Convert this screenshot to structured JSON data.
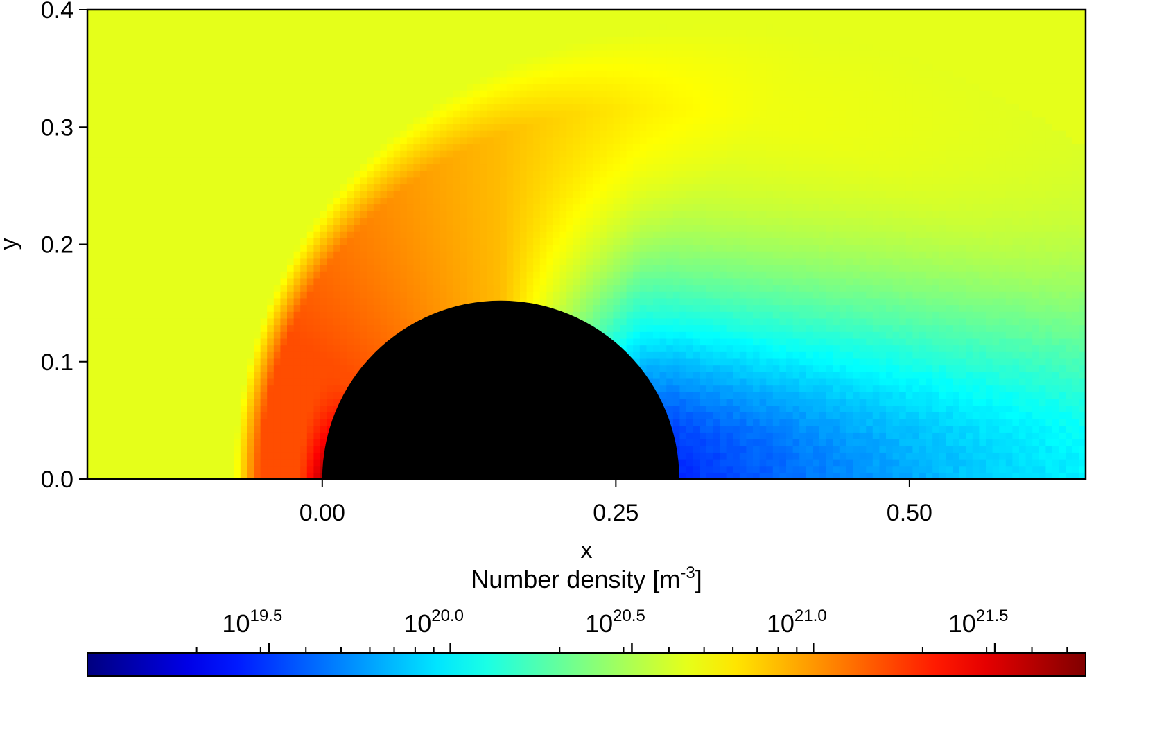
{
  "chart_data": {
    "type": "heatmap",
    "title": "",
    "xlabel": "x",
    "ylabel": "y",
    "xlim": [
      -0.2,
      0.65
    ],
    "ylim": [
      0.0,
      0.4
    ],
    "x_ticks": [
      {
        "value": 0.0,
        "label": "0.00"
      },
      {
        "value": 0.25,
        "label": "0.25"
      },
      {
        "value": 0.5,
        "label": "0.50"
      }
    ],
    "y_ticks": [
      {
        "value": 0.0,
        "label": "0.0"
      },
      {
        "value": 0.1,
        "label": "0.1"
      },
      {
        "value": 0.2,
        "label": "0.2"
      },
      {
        "value": 0.3,
        "label": "0.3"
      },
      {
        "value": 0.4,
        "label": "0.4"
      }
    ],
    "obstacle": {
      "shape": "semicircle",
      "center_x": 0.152,
      "center_y": 0.0,
      "radius": 0.152,
      "color": "#000000"
    },
    "field": {
      "quantity": "Number density",
      "freestream_log10": 20.65,
      "shock_standoff_x": -0.075,
      "shock_peak_log10": 21.2,
      "stagnation_peak_log10": 21.55,
      "wake_min_log10": 19.5
    },
    "colorbar": {
      "label_text": "Number density [m",
      "label_sup": "-3",
      "label_close": "]",
      "log10_range": [
        19.0,
        21.75
      ],
      "ticks": [
        {
          "exponent": 19.5,
          "base": "10",
          "sup": "19.5"
        },
        {
          "exponent": 20.0,
          "base": "10",
          "sup": "20.0"
        },
        {
          "exponent": 20.5,
          "base": "10",
          "sup": "20.5"
        },
        {
          "exponent": 21.0,
          "base": "10",
          "sup": "21.0"
        },
        {
          "exponent": 21.5,
          "base": "10",
          "sup": "21.5"
        }
      ],
      "colormap": "jet",
      "colormap_stops": [
        "#00007f",
        "#0000ff",
        "#00ffff",
        "#ffff00",
        "#ff0000",
        "#7f0000"
      ]
    }
  }
}
